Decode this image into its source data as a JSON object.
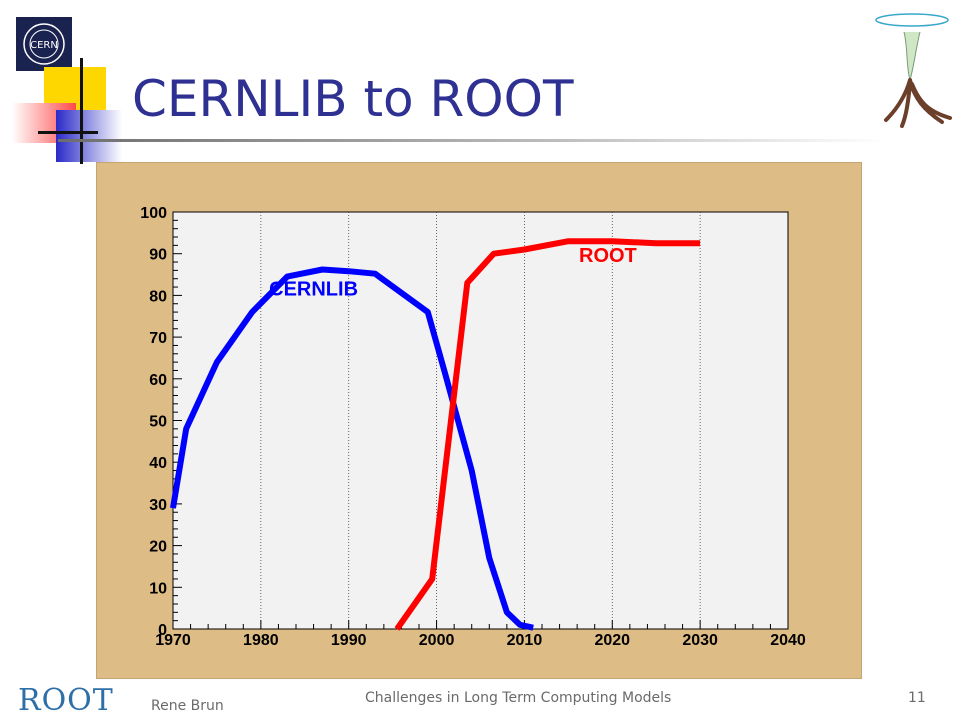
{
  "slide": {
    "title": "CERNLIB to ROOT",
    "logo_text": "CERN",
    "footer_logo_text": "ROOT",
    "footer_author": "Rene Brun",
    "footer_title": "Challenges in Long Term Computing Models",
    "page_number": "11"
  },
  "chart_data": {
    "type": "line",
    "title": "",
    "xlabel": "",
    "ylabel": "",
    "xlim": [
      1970,
      2040
    ],
    "ylim": [
      0,
      100
    ],
    "x_ticks": [
      1970,
      1980,
      1990,
      2000,
      2010,
      2020,
      2030,
      2040
    ],
    "y_ticks": [
      0,
      10,
      20,
      30,
      40,
      50,
      60,
      70,
      80,
      90,
      100
    ],
    "grid": "vertical dotted lines at each decade",
    "series": [
      {
        "name": "CERNLIB",
        "color": "#0000FF",
        "points": [
          [
            1970,
            29
          ],
          [
            1971.5,
            48
          ],
          [
            1975,
            64
          ],
          [
            1979,
            76
          ],
          [
            1983,
            84.5
          ],
          [
            1987,
            86.2
          ],
          [
            1990,
            85.8
          ],
          [
            1993,
            85.2
          ],
          [
            1999,
            76
          ],
          [
            2001,
            61
          ],
          [
            2004,
            38
          ],
          [
            2006,
            17
          ],
          [
            2008,
            4
          ],
          [
            2009.5,
            1
          ],
          [
            2011,
            0.3
          ]
        ]
      },
      {
        "name": "ROOT",
        "color": "#FF0000",
        "points": [
          [
            1995.5,
            0
          ],
          [
            1999.5,
            12
          ],
          [
            2003.5,
            83
          ],
          [
            2006.5,
            90
          ],
          [
            2010,
            91
          ],
          [
            2015,
            93
          ],
          [
            2020,
            93
          ],
          [
            2025,
            92.5
          ],
          [
            2030,
            92.5
          ]
        ]
      }
    ],
    "annotations": [
      {
        "text": "CERNLIB",
        "color": "#0000FF",
        "x": 1986,
        "y": 80
      },
      {
        "text": "ROOT",
        "color": "#FF0000",
        "x": 2019.5,
        "y": 88
      }
    ]
  }
}
